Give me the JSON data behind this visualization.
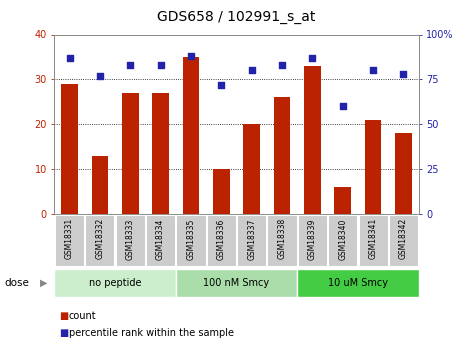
{
  "title": "GDS658 / 102991_s_at",
  "samples": [
    "GSM18331",
    "GSM18332",
    "GSM18333",
    "GSM18334",
    "GSM18335",
    "GSM18336",
    "GSM18337",
    "GSM18338",
    "GSM18339",
    "GSM18340",
    "GSM18341",
    "GSM18342"
  ],
  "counts": [
    29,
    13,
    27,
    27,
    35,
    10,
    20,
    26,
    33,
    6,
    21,
    18
  ],
  "percentiles": [
    87,
    77,
    83,
    83,
    88,
    72,
    80,
    83,
    87,
    60,
    80,
    78
  ],
  "bar_color": "#bb2200",
  "dot_color": "#2222aa",
  "ylim_left": [
    0,
    40
  ],
  "ylim_right": [
    0,
    100
  ],
  "yticks_left": [
    0,
    10,
    20,
    30,
    40
  ],
  "yticks_right": [
    0,
    25,
    50,
    75,
    100
  ],
  "groups": [
    {
      "label": "no peptide",
      "indices": [
        0,
        1,
        2,
        3
      ],
      "color": "#cceecc"
    },
    {
      "label": "100 nM Smcy",
      "indices": [
        4,
        5,
        6,
        7
      ],
      "color": "#aaddaa"
    },
    {
      "label": "10 uM Smcy",
      "indices": [
        8,
        9,
        10,
        11
      ],
      "color": "#44cc44"
    }
  ],
  "dose_label": "dose",
  "legend_count": "count",
  "legend_percentile": "percentile rank within the sample",
  "bg_color": "#ffffff",
  "tick_label_bg": "#cccccc",
  "grid_color": "#000000",
  "title_fontsize": 10,
  "bar_width": 0.55
}
